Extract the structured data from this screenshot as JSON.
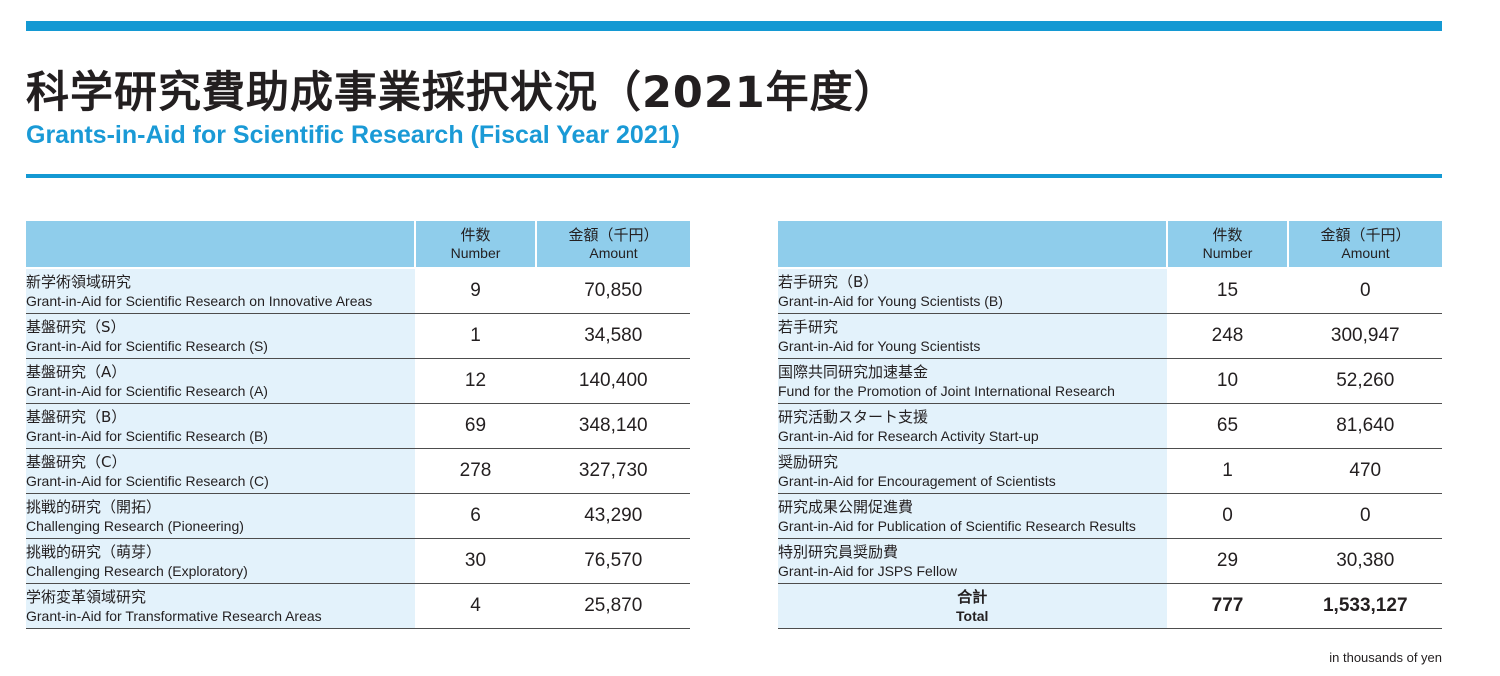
{
  "title_jp": "科学研究費助成事業採択状況（2021年度）",
  "title_en": "Grants-in-Aid for Scientific Research (Fiscal Year 2021)",
  "headers": {
    "number_jp": "件数",
    "number_en": "Number",
    "amount_jp": "金額（千円）",
    "amount_en": "Amount"
  },
  "left_rows": [
    {
      "jp": "新学術領域研究",
      "en": "Grant-in-Aid for Scientific Research on Innovative Areas",
      "number": "9",
      "amount": "70,850"
    },
    {
      "jp": "基盤研究（S）",
      "en": "Grant-in-Aid for Scientific Research (S)",
      "number": "1",
      "amount": "34,580"
    },
    {
      "jp": "基盤研究（A）",
      "en": "Grant-in-Aid for Scientific Research (A)",
      "number": "12",
      "amount": "140,400"
    },
    {
      "jp": "基盤研究（B）",
      "en": "Grant-in-Aid for Scientific Research (B)",
      "number": "69",
      "amount": "348,140"
    },
    {
      "jp": "基盤研究（C）",
      "en": "Grant-in-Aid for Scientific Research (C)",
      "number": "278",
      "amount": "327,730"
    },
    {
      "jp": "挑戦的研究（開拓）",
      "en": "Challenging Research (Pioneering)",
      "number": "6",
      "amount": "43,290"
    },
    {
      "jp": "挑戦的研究（萌芽）",
      "en": "Challenging Research (Exploratory)",
      "number": "30",
      "amount": "76,570"
    },
    {
      "jp": "学術変革領域研究",
      "en": "Grant-in-Aid for Transformative Research Areas",
      "number": "4",
      "amount": "25,870"
    }
  ],
  "right_rows": [
    {
      "jp": "若手研究（B）",
      "en": "Grant-in-Aid for Young Scientists (B)",
      "number": "15",
      "amount": "0"
    },
    {
      "jp": "若手研究",
      "en": "Grant-in-Aid for Young Scientists",
      "number": "248",
      "amount": "300,947"
    },
    {
      "jp": "国際共同研究加速基金",
      "en": "Fund for the Promotion of Joint International Research",
      "number": "10",
      "amount": "52,260"
    },
    {
      "jp": "研究活動スタート支援",
      "en": "Grant-in-Aid for Research Activity Start-up",
      "number": "65",
      "amount": "81,640"
    },
    {
      "jp": "奨励研究",
      "en": "Grant-in-Aid for Encouragement of Scientists",
      "number": "1",
      "amount": "470"
    },
    {
      "jp": "研究成果公開促進費",
      "en": "Grant-in-Aid for Publication of Scientific Research Results",
      "number": "0",
      "amount": "0"
    },
    {
      "jp": "特別研究員奨励費",
      "en": "Grant-in-Aid for JSPS Fellow",
      "number": "29",
      "amount": "30,380"
    }
  ],
  "total": {
    "jp": "合計",
    "en": "Total",
    "number": "777",
    "amount": "1,533,127"
  },
  "unit_note": "in thousands of yen",
  "colors": {
    "accent": "#1499d3",
    "header_bg": "#8fcdeb",
    "row_label_bg": "#e3f2fb"
  }
}
